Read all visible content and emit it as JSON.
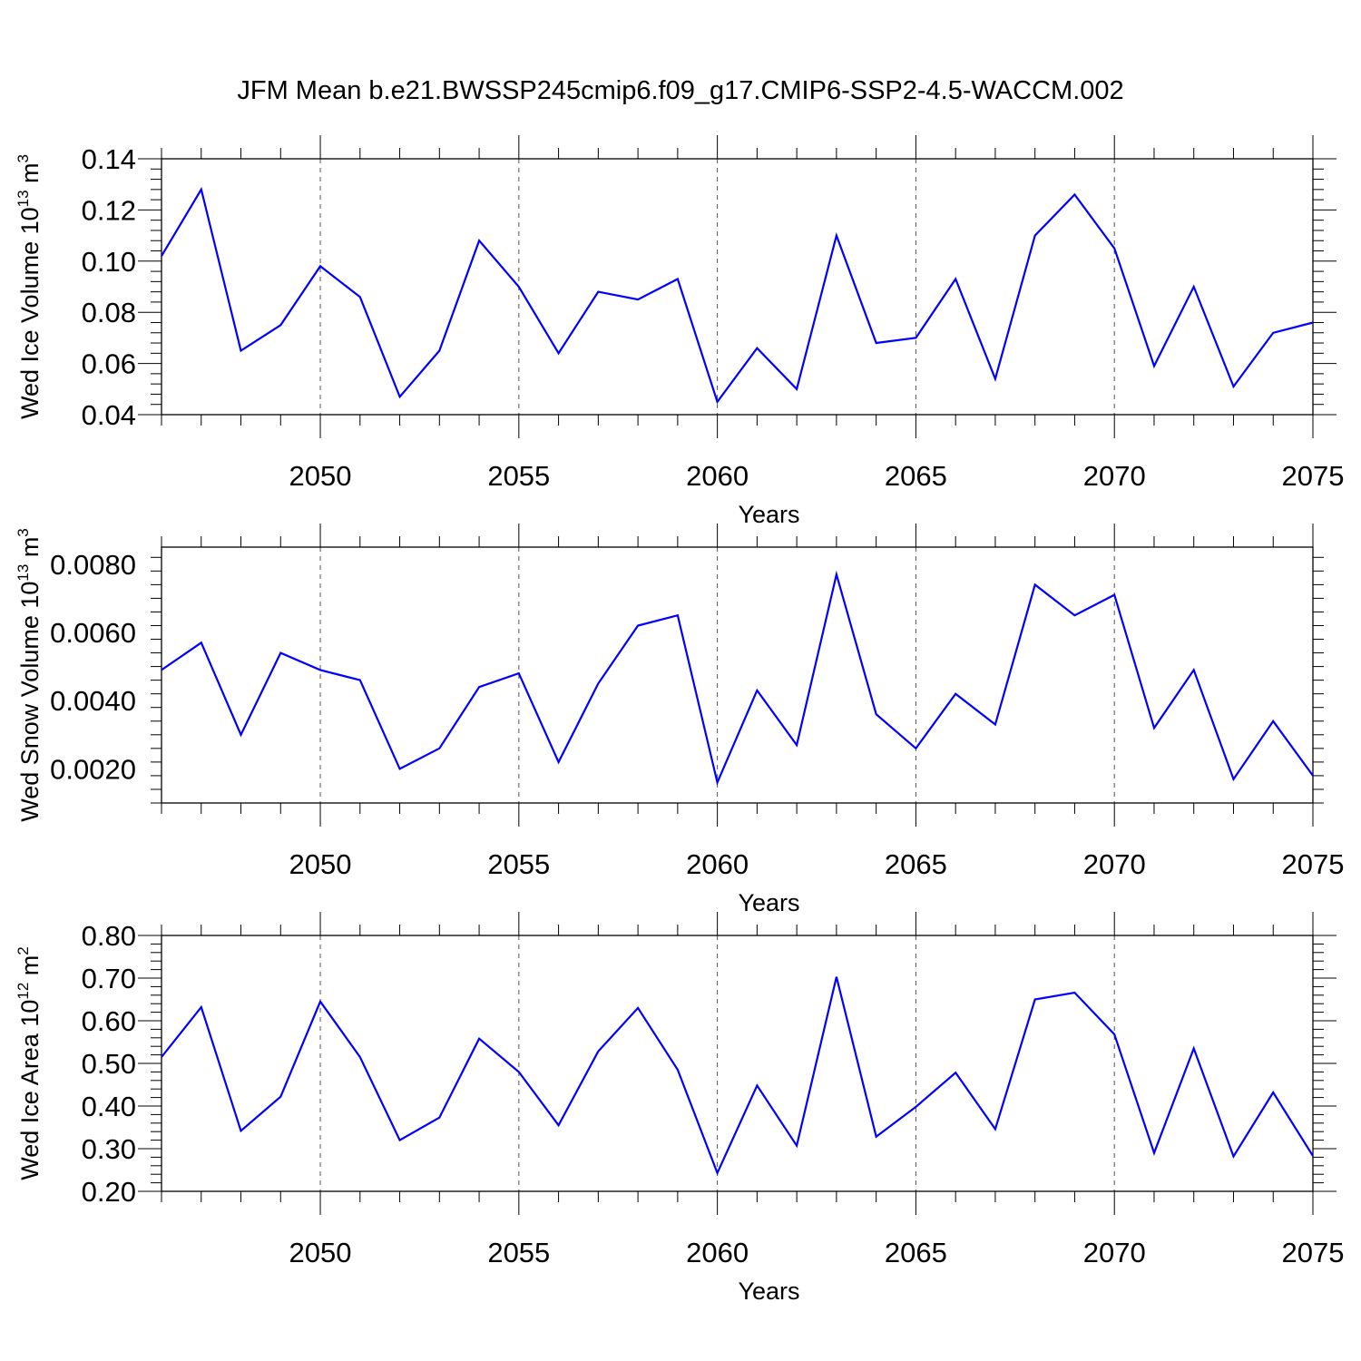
{
  "title": "JFM Mean b.e21.BWSSP245cmip6.f09_g17.CMIP6-SSP2-4.5-WACCM.002",
  "style": {
    "line_color": "#0000ff",
    "axis_color": "#000000",
    "grid_color": "#555555"
  },
  "chart_data": [
    {
      "type": "line",
      "xlabel": "Years",
      "ylabel": "Wed Ice Volume 10",
      "ylabel_sup": "13",
      "ylabel_unit": "m",
      "ylabel_unit_sup": "3",
      "xlim": [
        2046,
        2075
      ],
      "ylim": [
        0.04,
        0.14
      ],
      "x_ticks": [
        "2050",
        "2055",
        "2060",
        "2065",
        "2070",
        "2075"
      ],
      "y_ticks": [
        "0.04",
        "0.06",
        "0.08",
        "0.10",
        "0.12",
        "0.14"
      ],
      "grid": "vertical-dashed",
      "series": [
        {
          "x": [
            2046,
            2047,
            2048,
            2049,
            2050,
            2051,
            2052,
            2053,
            2054,
            2055,
            2056,
            2057,
            2058,
            2059,
            2060,
            2061,
            2062,
            2063,
            2064,
            2065,
            2066,
            2067,
            2068,
            2069,
            2070,
            2071,
            2072,
            2073,
            2074,
            2075
          ],
          "values": [
            0.102,
            0.128,
            0.065,
            0.075,
            0.098,
            0.086,
            0.047,
            0.065,
            0.108,
            0.09,
            0.064,
            0.088,
            0.085,
            0.093,
            0.045,
            0.066,
            0.05,
            0.11,
            0.068,
            0.07,
            0.093,
            0.054,
            0.11,
            0.126,
            0.105,
            0.059,
            0.09,
            0.051,
            0.072,
            0.076
          ]
        }
      ]
    },
    {
      "type": "line",
      "xlabel": "Years",
      "ylabel": "Wed Snow Volume 10",
      "ylabel_sup": "13",
      "ylabel_unit": "m",
      "ylabel_unit_sup": "3",
      "xlim": [
        2046,
        2075
      ],
      "ylim": [
        0.001,
        0.0085
      ],
      "x_ticks": [
        "2050",
        "2055",
        "2060",
        "2065",
        "2070",
        "2075"
      ],
      "y_ticks": [
        "0.0020",
        "0.0040",
        "0.0060",
        "0.0080"
      ],
      "grid": "vertical-dashed",
      "series": [
        {
          "x": [
            2046,
            2047,
            2048,
            2049,
            2050,
            2051,
            2052,
            2053,
            2054,
            2055,
            2056,
            2057,
            2058,
            2059,
            2060,
            2061,
            2062,
            2063,
            2064,
            2065,
            2066,
            2067,
            2068,
            2069,
            2070,
            2071,
            2072,
            2073,
            2074,
            2075
          ],
          "values": [
            0.0049,
            0.0057,
            0.003,
            0.0054,
            0.0049,
            0.0046,
            0.002,
            0.0026,
            0.0044,
            0.0048,
            0.0022,
            0.0045,
            0.0062,
            0.0065,
            0.0016,
            0.0043,
            0.0027,
            0.0077,
            0.0036,
            0.0026,
            0.0042,
            0.0033,
            0.0074,
            0.0065,
            0.0071,
            0.0032,
            0.0049,
            0.0017,
            0.0034,
            0.0018
          ]
        }
      ]
    },
    {
      "type": "line",
      "xlabel": "Years",
      "ylabel": "Wed Ice Area 10",
      "ylabel_sup": "12",
      "ylabel_unit": "m",
      "ylabel_unit_sup": "2",
      "xlim": [
        2046,
        2075
      ],
      "ylim": [
        0.2,
        0.8
      ],
      "x_ticks": [
        "2050",
        "2055",
        "2060",
        "2065",
        "2070",
        "2075"
      ],
      "y_ticks": [
        "0.20",
        "0.30",
        "0.40",
        "0.50",
        "0.60",
        "0.70",
        "0.80"
      ],
      "grid": "vertical-dashed",
      "series": [
        {
          "x": [
            2046,
            2047,
            2048,
            2049,
            2050,
            2051,
            2052,
            2053,
            2054,
            2055,
            2056,
            2057,
            2058,
            2059,
            2060,
            2061,
            2062,
            2063,
            2064,
            2065,
            2066,
            2067,
            2068,
            2069,
            2070,
            2071,
            2072,
            2073,
            2074,
            2075
          ],
          "values": [
            0.515,
            0.632,
            0.342,
            0.422,
            0.645,
            0.515,
            0.32,
            0.373,
            0.558,
            0.48,
            0.355,
            0.528,
            0.63,
            0.485,
            0.243,
            0.448,
            0.307,
            0.703,
            0.328,
            0.398,
            0.478,
            0.346,
            0.65,
            0.666,
            0.568,
            0.29,
            0.535,
            0.282,
            0.432,
            0.283
          ]
        }
      ]
    }
  ]
}
